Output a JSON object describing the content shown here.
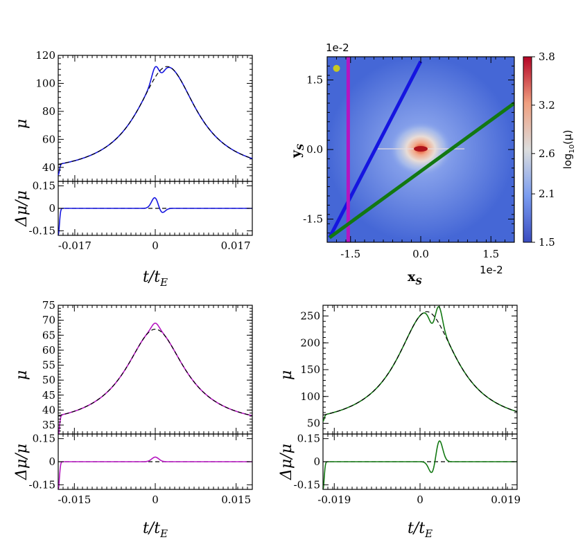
{
  "chart_data": [
    {
      "id": "top-left",
      "type": "line",
      "color": "#1515e0",
      "main": {
        "ylabel": "μ",
        "ylim": [
          30,
          120
        ],
        "yticks": [
          40,
          60,
          80,
          100,
          120
        ],
        "xlim": [
          -0.0205,
          0.0205
        ],
        "model_peak": {
          "t": 0.0025,
          "value": 112
        },
        "bumps": [
          {
            "t": 0.0,
            "value": 110
          },
          {
            "t": 0.0012,
            "value": 104
          }
        ]
      },
      "residual": {
        "ylabel": "Δμ/μ",
        "ylim": [
          -0.18,
          0.18
        ],
        "yticks": [
          "0.15",
          "0",
          "-0.15"
        ],
        "ytick_values": [
          0.15,
          0,
          -0.15
        ],
        "features": [
          {
            "t": 0.0,
            "value": 0.08
          },
          {
            "t": 0.0012,
            "value": -0.04
          }
        ]
      },
      "xticks": [
        "-0.017",
        "0",
        "0.017"
      ],
      "xtick_values": [
        -0.017,
        0,
        0.017
      ],
      "xlabel": "t/t_E"
    },
    {
      "id": "top-right",
      "type": "heatmap",
      "xlabel": "x_S",
      "ylabel": "y_S",
      "x_multiplier": "1e-2",
      "y_multiplier": "1e-2",
      "xlim": [
        -2.0,
        2.0
      ],
      "ylim": [
        -2.0,
        2.0
      ],
      "xticks": [
        "-1.5",
        "0.0",
        "1.5"
      ],
      "xtick_values": [
        -1.5,
        0.0,
        1.5
      ],
      "yticks": [
        "1.5",
        "0.0",
        "-1.5"
      ],
      "ytick_values": [
        1.5,
        0.0,
        -1.5
      ],
      "colorbar": {
        "label": "log10(μ)",
        "ticks": [
          "3.8",
          "3.2",
          "2.6",
          "2.1",
          "1.5"
        ],
        "tick_values": [
          3.8,
          3.2,
          2.6,
          2.1,
          1.5
        ]
      },
      "trajectories": [
        {
          "color": "#1515e0",
          "from": [
            -1.95,
            -1.9
          ],
          "to": [
            0.0,
            1.9
          ]
        },
        {
          "color": "#b515c0",
          "from": [
            -1.55,
            -2.0
          ],
          "to": [
            -1.55,
            2.0
          ]
        },
        {
          "color": "#127812",
          "from": [
            -1.95,
            -1.9
          ],
          "to": [
            2.0,
            1.0
          ]
        }
      ],
      "source_marker": {
        "x": -1.8,
        "y": 1.75,
        "color": "#c8c820"
      }
    },
    {
      "id": "bottom-left",
      "type": "line",
      "color": "#b515c0",
      "main": {
        "ylabel": "μ",
        "ylim": [
          32,
          75
        ],
        "yticks": [
          35,
          40,
          45,
          50,
          55,
          60,
          65,
          70,
          75
        ],
        "xlim": [
          -0.018,
          0.018
        ],
        "model_peak": {
          "t": 0.0,
          "value": 67
        },
        "bumps": [
          {
            "t": 0.0,
            "value": 69
          }
        ]
      },
      "residual": {
        "ylabel": "Δμ/μ",
        "ylim": [
          -0.18,
          0.18
        ],
        "yticks": [
          "0.15",
          "0",
          "-0.15"
        ],
        "ytick_values": [
          0.15,
          0,
          -0.15
        ],
        "features": [
          {
            "t": 0.0,
            "value": 0.03
          }
        ]
      },
      "xticks": [
        "-0.015",
        "0",
        "0.015"
      ],
      "xtick_values": [
        -0.015,
        0,
        0.015
      ],
      "xlabel": "t/t_E"
    },
    {
      "id": "bottom-right",
      "type": "line",
      "color": "#127812",
      "main": {
        "ylabel": "μ",
        "ylim": [
          30,
          270
        ],
        "yticks": [
          50,
          100,
          150,
          200,
          250
        ],
        "xlim": [
          -0.0215,
          0.0215
        ],
        "model_peak": {
          "t": 0.0015,
          "value": 258
        },
        "bumps": [
          {
            "t": 0.0038,
            "value": 180
          }
        ]
      },
      "residual": {
        "ylabel": "Δμ/μ",
        "ylim": [
          -0.18,
          0.18
        ],
        "yticks": [
          "0.15",
          "0",
          "-0.15"
        ],
        "ytick_values": [
          0.15,
          0,
          -0.15
        ],
        "features": [
          {
            "t": 0.0028,
            "value": -0.09
          },
          {
            "t": 0.0042,
            "value": 0.15
          }
        ]
      },
      "xticks": [
        "-0.019",
        "0",
        "0.019"
      ],
      "xtick_values": [
        -0.019,
        0,
        0.019
      ],
      "xlabel": "t/t_E"
    }
  ]
}
